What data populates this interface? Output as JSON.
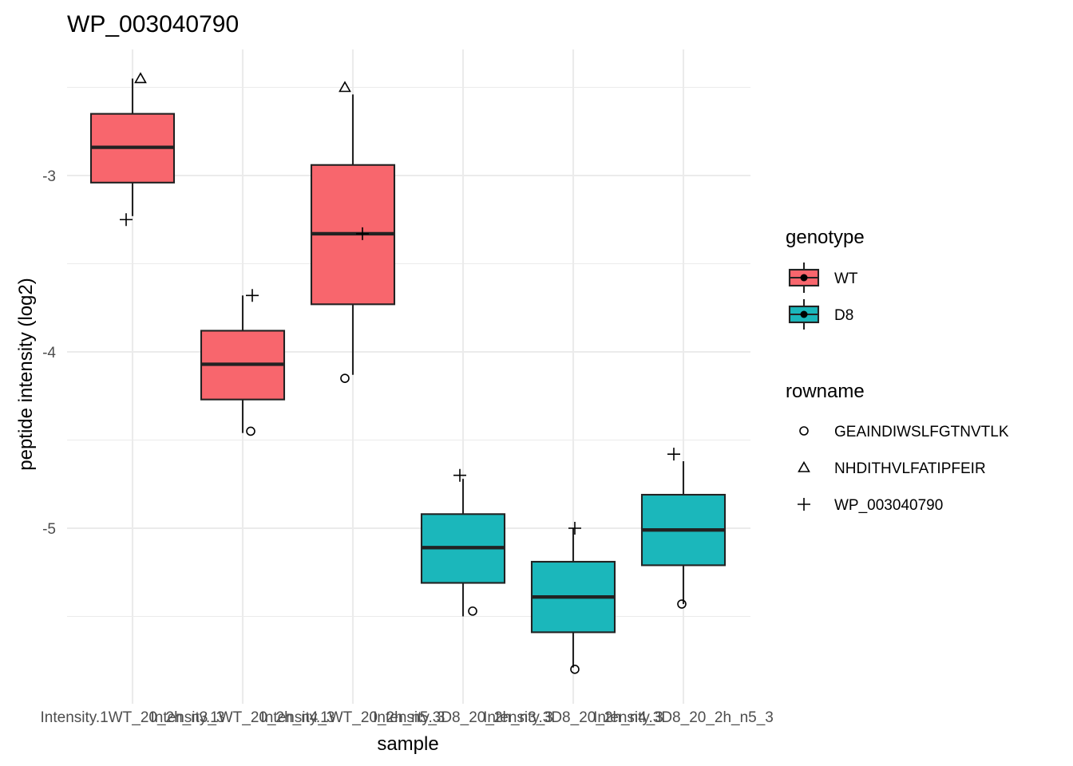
{
  "title": "WP_003040790",
  "chart_data": {
    "type": "box",
    "title": "WP_003040790",
    "xlabel": "sample",
    "ylabel": "peptide intensity (log2)",
    "ylim": [
      -5.9,
      -2.35
    ],
    "yticks": [
      -3,
      -4,
      -5
    ],
    "ytick_labels": [
      "-3",
      "-4",
      "-5"
    ],
    "categories": [
      "Intensity.1WT_20_2h_n3_3",
      "Intensity.1WT_20_2h_n4_3",
      "Intensity.1WT_20_2h_n5_3",
      "Intensity.3D8_20_2h_n3_3",
      "Intensity.3D8_20_2h_n4_3",
      "Intensity.3D8_20_2h_n5_3"
    ],
    "xtick_labels": [
      "Intensity.1WT_20_2h_n3_3",
      "Intensity.1WT_20_2h_n4_3",
      "Intensity.1WT_20_2h_n5_3",
      "Intensity.3D8_20_2h_n3_3",
      "Intensity.3D8_20_2h_n4_3",
      "Intensity.3D8_20_2h_n5_3"
    ],
    "boxes": [
      {
        "genotype": "WT",
        "min": -3.23,
        "q1": -3.04,
        "median": -2.84,
        "q3": -2.65,
        "max": -2.45
      },
      {
        "genotype": "WT",
        "min": -4.46,
        "q1": -4.27,
        "median": -4.07,
        "q3": -3.88,
        "max": -3.68
      },
      {
        "genotype": "WT",
        "min": -4.13,
        "q1": -3.73,
        "median": -3.33,
        "q3": -2.94,
        "max": -2.54
      },
      {
        "genotype": "D8",
        "min": -5.5,
        "q1": -5.31,
        "median": -5.11,
        "q3": -4.92,
        "max": -4.72
      },
      {
        "genotype": "D8",
        "min": -5.79,
        "q1": -5.59,
        "median": -5.39,
        "q3": -5.19,
        "max": -5.0
      },
      {
        "genotype": "D8",
        "min": -5.43,
        "q1": -5.21,
        "median": -5.01,
        "q3": -4.81,
        "max": -4.62
      }
    ],
    "points": [
      {
        "sample": 0,
        "rowname": "NHDITHVLFATIPFEIR",
        "y": -2.45
      },
      {
        "sample": 0,
        "rowname": "WP_003040790",
        "y": -3.25
      },
      {
        "sample": 1,
        "rowname": "WP_003040790",
        "y": -3.68
      },
      {
        "sample": 1,
        "rowname": "GEAINDIWSLFGTNVTLK",
        "y": -4.45
      },
      {
        "sample": 2,
        "rowname": "NHDITHVLFATIPFEIR",
        "y": -2.5
      },
      {
        "sample": 2,
        "rowname": "WP_003040790",
        "y": -3.33
      },
      {
        "sample": 2,
        "rowname": "GEAINDIWSLFGTNVTLK",
        "y": -4.15
      },
      {
        "sample": 3,
        "rowname": "WP_003040790",
        "y": -4.7
      },
      {
        "sample": 3,
        "rowname": "GEAINDIWSLFGTNVTLK",
        "y": -5.47
      },
      {
        "sample": 4,
        "rowname": "WP_003040790",
        "y": -5.0
      },
      {
        "sample": 4,
        "rowname": "GEAINDIWSLFGTNVTLK",
        "y": -5.8
      },
      {
        "sample": 5,
        "rowname": "WP_003040790",
        "y": -4.58
      },
      {
        "sample": 5,
        "rowname": "GEAINDIWSLFGTNVTLK",
        "y": -5.43
      }
    ],
    "legend": {
      "placement": "right",
      "genotype": {
        "title": "genotype",
        "items": [
          {
            "label": "WT",
            "color": "#F8766D"
          },
          {
            "label": "D8",
            "color": "#00BFC4"
          }
        ]
      },
      "rowname": {
        "title": "rowname",
        "items": [
          {
            "label": "GEAINDIWSLFGTNVTLK",
            "shape": "circle"
          },
          {
            "label": "NHDITHVLFATIPFEIR",
            "shape": "triangle"
          },
          {
            "label": "WP_003040790",
            "shape": "plus"
          }
        ]
      }
    },
    "colors": {
      "WT": "#F8666D",
      "D8": "#1BB7BB"
    },
    "grid": true
  }
}
